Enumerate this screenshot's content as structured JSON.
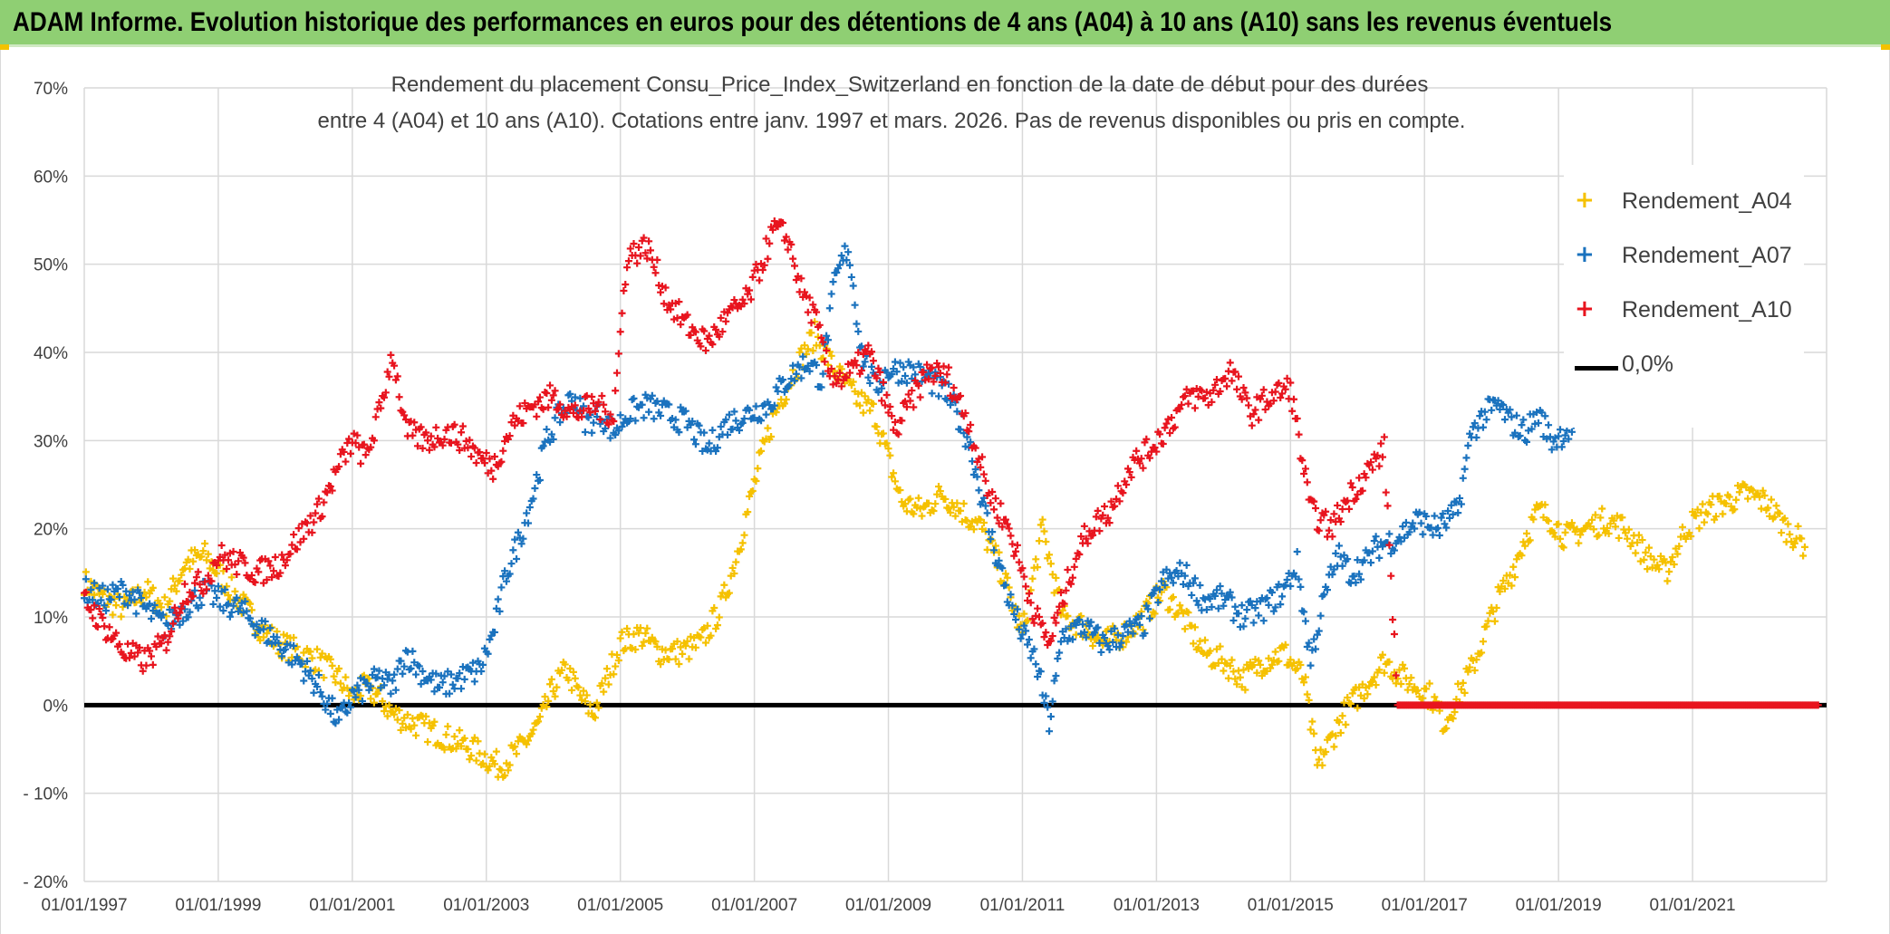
{
  "banner": {
    "title": "ADAM Informe. Evolution historique des performances en euros pour des détentions de 4 ans (A04) à 10 ans (A10) sans les revenus éventuels"
  },
  "colors": {
    "banner_bg": "#8fcf73",
    "a04": "#f5c100",
    "a07": "#1a72be",
    "a10": "#e8141e",
    "zero_line": "#000000",
    "grid": "#d9d9d9",
    "axis_text": "#404040"
  },
  "chart_data": {
    "type": "scatter",
    "title_line1": "Rendement du placement Consu_Price_Index_Switzerland en fonction de la date de début pour des durées",
    "title_line2": "entre 4 (A04) et 10 ans (A10). Cotations entre janv. 1997 et mars. 2026. Pas de revenus disponibles ou pris en compte.",
    "x_unit": "year",
    "xlim": [
      1997.0,
      2023.0
    ],
    "ylim": [
      -20,
      70
    ],
    "y_ticks": [
      70,
      60,
      50,
      40,
      30,
      20,
      10,
      0,
      -10,
      -20
    ],
    "y_tick_labels": [
      "70%",
      "60%",
      "50%",
      "40%",
      "30%",
      "20%",
      "10%",
      "0%",
      "- 10%",
      "- 20%"
    ],
    "x_tick_values": [
      1997,
      1999,
      2001,
      2003,
      2005,
      2007,
      2009,
      2011,
      2013,
      2015,
      2017,
      2019,
      2021
    ],
    "x_tick_labels": [
      "01/01/1997",
      "01/01/1999",
      "01/01/2001",
      "01/01/2003",
      "01/01/2005",
      "01/01/2007",
      "01/01/2009",
      "01/01/2011",
      "01/01/2013",
      "01/01/2015",
      "01/01/2017",
      "01/01/2019",
      "01/01/2021"
    ],
    "legend": [
      {
        "key": "a04",
        "label": "Rendement_A04"
      },
      {
        "key": "a07",
        "label": "Rendement_A07"
      },
      {
        "key": "a10",
        "label": "Rendement_A10"
      },
      {
        "key": "zero",
        "label": "0,0%"
      }
    ],
    "series": [
      {
        "name": "Rendement_A04",
        "key": "a04",
        "points": [
          [
            1997.0,
            14
          ],
          [
            1997.3,
            12
          ],
          [
            1997.6,
            11
          ],
          [
            1997.9,
            13
          ],
          [
            1998.2,
            11
          ],
          [
            1998.5,
            16
          ],
          [
            1998.8,
            17
          ],
          [
            1999.0,
            15
          ],
          [
            1999.3,
            12
          ],
          [
            1999.6,
            9
          ],
          [
            1999.9,
            7
          ],
          [
            2000.2,
            6
          ],
          [
            2000.5,
            5
          ],
          [
            2000.8,
            3
          ],
          [
            2001.0,
            1
          ],
          [
            2001.2,
            2
          ],
          [
            2001.4,
            1
          ],
          [
            2001.6,
            -1
          ],
          [
            2001.9,
            -2
          ],
          [
            2002.2,
            -3
          ],
          [
            2002.5,
            -4
          ],
          [
            2002.8,
            -5
          ],
          [
            2003.0,
            -6
          ],
          [
            2003.2,
            -7
          ],
          [
            2003.5,
            -5
          ],
          [
            2003.8,
            -2
          ],
          [
            2004.0,
            2
          ],
          [
            2004.2,
            4
          ],
          [
            2004.4,
            1
          ],
          [
            2004.6,
            -1
          ],
          [
            2004.8,
            3
          ],
          [
            2005.0,
            7
          ],
          [
            2005.3,
            8
          ],
          [
            2005.6,
            6
          ],
          [
            2005.9,
            6
          ],
          [
            2006.2,
            7
          ],
          [
            2006.5,
            11
          ],
          [
            2006.7,
            16
          ],
          [
            2006.9,
            22
          ],
          [
            2007.1,
            28
          ],
          [
            2007.3,
            33
          ],
          [
            2007.6,
            38
          ],
          [
            2007.9,
            42
          ],
          [
            2008.2,
            38
          ],
          [
            2008.5,
            35
          ],
          [
            2008.8,
            33
          ],
          [
            2009.0,
            28
          ],
          [
            2009.2,
            23
          ],
          [
            2009.5,
            22
          ],
          [
            2009.8,
            24
          ],
          [
            2010.1,
            22
          ],
          [
            2010.4,
            20
          ],
          [
            2010.7,
            15
          ],
          [
            2011.0,
            8
          ],
          [
            2011.3,
            20
          ],
          [
            2011.6,
            10
          ],
          [
            2011.9,
            9
          ],
          [
            2012.2,
            7
          ],
          [
            2012.5,
            8
          ],
          [
            2012.8,
            10
          ],
          [
            2013.1,
            13
          ],
          [
            2013.4,
            10
          ],
          [
            2013.7,
            6
          ],
          [
            2014.0,
            5
          ],
          [
            2014.3,
            3
          ],
          [
            2014.6,
            5
          ],
          [
            2014.9,
            6
          ],
          [
            2015.2,
            3
          ],
          [
            2015.4,
            -7
          ],
          [
            2015.6,
            -4
          ],
          [
            2015.8,
            -1
          ],
          [
            2016.0,
            1
          ],
          [
            2016.2,
            3
          ],
          [
            2016.4,
            5
          ],
          [
            2016.7,
            3
          ],
          [
            2016.9,
            2
          ],
          [
            2017.1,
            1
          ],
          [
            2017.3,
            -2
          ],
          [
            2017.5,
            1
          ],
          [
            2017.7,
            4
          ],
          [
            2017.9,
            8
          ],
          [
            2018.1,
            12
          ],
          [
            2018.3,
            15
          ],
          [
            2018.5,
            19
          ],
          [
            2018.7,
            22
          ],
          [
            2018.9,
            21
          ],
          [
            2019.1,
            19
          ],
          [
            2019.4,
            20
          ],
          [
            2019.7,
            21
          ],
          [
            2020.0,
            20
          ],
          [
            2020.3,
            17
          ],
          [
            2020.6,
            15
          ],
          [
            2020.9,
            20
          ],
          [
            2021.2,
            22
          ],
          [
            2021.5,
            23
          ],
          [
            2021.8,
            24
          ],
          [
            2022.1,
            23
          ],
          [
            2022.4,
            20
          ],
          [
            2022.7,
            18
          ]
        ]
      },
      {
        "name": "Rendement_A07",
        "key": "a07",
        "points": [
          [
            1997.0,
            13
          ],
          [
            1997.3,
            12
          ],
          [
            1997.6,
            13
          ],
          [
            1997.9,
            11
          ],
          [
            1998.2,
            9
          ],
          [
            1998.5,
            11
          ],
          [
            1998.8,
            13
          ],
          [
            1999.0,
            12
          ],
          [
            1999.3,
            11
          ],
          [
            1999.6,
            9
          ],
          [
            1999.9,
            7
          ],
          [
            2000.2,
            5
          ],
          [
            2000.5,
            2
          ],
          [
            2000.8,
            -2
          ],
          [
            2001.0,
            1
          ],
          [
            2001.2,
            2
          ],
          [
            2001.4,
            3
          ],
          [
            2001.6,
            2
          ],
          [
            2001.8,
            6
          ],
          [
            2002.0,
            4
          ],
          [
            2002.3,
            2
          ],
          [
            2002.6,
            3
          ],
          [
            2002.9,
            4
          ],
          [
            2003.1,
            8
          ],
          [
            2003.3,
            15
          ],
          [
            2003.5,
            19
          ],
          [
            2003.7,
            24
          ],
          [
            2003.9,
            30
          ],
          [
            2004.1,
            33
          ],
          [
            2004.3,
            35
          ],
          [
            2004.5,
            32
          ],
          [
            2004.7,
            33
          ],
          [
            2004.9,
            31
          ],
          [
            2005.1,
            33
          ],
          [
            2005.4,
            34
          ],
          [
            2005.7,
            33
          ],
          [
            2006.0,
            32
          ],
          [
            2006.3,
            29
          ],
          [
            2006.6,
            32
          ],
          [
            2006.9,
            33
          ],
          [
            2007.2,
            34
          ],
          [
            2007.5,
            37
          ],
          [
            2007.8,
            39
          ],
          [
            2008.0,
            37
          ],
          [
            2008.2,
            48
          ],
          [
            2008.4,
            52
          ],
          [
            2008.6,
            40
          ],
          [
            2008.8,
            36
          ],
          [
            2009.0,
            38
          ],
          [
            2009.3,
            38
          ],
          [
            2009.6,
            37
          ],
          [
            2009.9,
            35
          ],
          [
            2010.2,
            30
          ],
          [
            2010.5,
            20
          ],
          [
            2010.8,
            12
          ],
          [
            2011.0,
            8
          ],
          [
            2011.2,
            5
          ],
          [
            2011.4,
            -2
          ],
          [
            2011.6,
            8
          ],
          [
            2011.9,
            9
          ],
          [
            2012.2,
            7
          ],
          [
            2012.5,
            8
          ],
          [
            2012.8,
            9
          ],
          [
            2013.1,
            14
          ],
          [
            2013.4,
            15
          ],
          [
            2013.7,
            12
          ],
          [
            2014.0,
            12
          ],
          [
            2014.3,
            10
          ],
          [
            2014.6,
            11
          ],
          [
            2014.9,
            13
          ],
          [
            2015.1,
            16
          ],
          [
            2015.3,
            5
          ],
          [
            2015.5,
            12
          ],
          [
            2015.7,
            17
          ],
          [
            2015.9,
            15
          ],
          [
            2016.1,
            16
          ],
          [
            2016.3,
            18
          ],
          [
            2016.6,
            19
          ],
          [
            2016.9,
            21
          ],
          [
            2017.2,
            20
          ],
          [
            2017.5,
            22
          ],
          [
            2017.7,
            31
          ],
          [
            2017.9,
            33
          ],
          [
            2018.1,
            34
          ],
          [
            2018.3,
            32
          ],
          [
            2018.5,
            31
          ],
          [
            2018.7,
            33
          ],
          [
            2018.9,
            30
          ],
          [
            2019.1,
            31
          ],
          [
            2019.3,
            32
          ]
        ]
      },
      {
        "name": "Rendement_A10",
        "key": "a10",
        "points": [
          [
            1997.0,
            12
          ],
          [
            1997.3,
            9
          ],
          [
            1997.6,
            6
          ],
          [
            1997.9,
            5
          ],
          [
            1998.2,
            7
          ],
          [
            1998.5,
            13
          ],
          [
            1998.8,
            14
          ],
          [
            1999.0,
            17
          ],
          [
            1999.3,
            16
          ],
          [
            1999.6,
            15
          ],
          [
            1999.9,
            16
          ],
          [
            2000.2,
            19
          ],
          [
            2000.5,
            22
          ],
          [
            2000.8,
            27
          ],
          [
            2001.0,
            30
          ],
          [
            2001.2,
            28
          ],
          [
            2001.4,
            33
          ],
          [
            2001.6,
            40
          ],
          [
            2001.8,
            31
          ],
          [
            2002.1,
            30
          ],
          [
            2002.4,
            31
          ],
          [
            2002.7,
            30
          ],
          [
            2002.9,
            28
          ],
          [
            2003.1,
            27
          ],
          [
            2003.4,
            32
          ],
          [
            2003.7,
            34
          ],
          [
            2004.0,
            35
          ],
          [
            2004.3,
            33
          ],
          [
            2004.6,
            34
          ],
          [
            2004.9,
            33
          ],
          [
            2005.1,
            51
          ],
          [
            2005.4,
            52
          ],
          [
            2005.7,
            46
          ],
          [
            2006.0,
            43
          ],
          [
            2006.3,
            41
          ],
          [
            2006.6,
            44
          ],
          [
            2006.9,
            46
          ],
          [
            2007.1,
            50
          ],
          [
            2007.3,
            54
          ],
          [
            2007.5,
            53
          ],
          [
            2007.7,
            47
          ],
          [
            2007.9,
            44
          ],
          [
            2008.1,
            38
          ],
          [
            2008.3,
            37
          ],
          [
            2008.5,
            38
          ],
          [
            2008.7,
            40
          ],
          [
            2008.9,
            36
          ],
          [
            2009.1,
            31
          ],
          [
            2009.3,
            34
          ],
          [
            2009.6,
            38
          ],
          [
            2009.9,
            37
          ],
          [
            2010.2,
            32
          ],
          [
            2010.5,
            24
          ],
          [
            2010.8,
            20
          ],
          [
            2011.0,
            15
          ],
          [
            2011.2,
            10
          ],
          [
            2011.4,
            7
          ],
          [
            2011.6,
            12
          ],
          [
            2011.8,
            17
          ],
          [
            2012.0,
            20
          ],
          [
            2012.3,
            22
          ],
          [
            2012.6,
            27
          ],
          [
            2012.9,
            29
          ],
          [
            2013.2,
            32
          ],
          [
            2013.5,
            35
          ],
          [
            2013.8,
            35
          ],
          [
            2014.1,
            38
          ],
          [
            2014.4,
            33
          ],
          [
            2014.7,
            35
          ],
          [
            2015.0,
            36
          ],
          [
            2015.3,
            22
          ],
          [
            2015.6,
            20
          ],
          [
            2015.9,
            24
          ],
          [
            2016.2,
            27
          ],
          [
            2016.4,
            29
          ],
          [
            2016.6,
            0
          ],
          [
            2017.0,
            0
          ],
          [
            2018.0,
            0
          ],
          [
            2019.0,
            0
          ],
          [
            2020.0,
            0
          ],
          [
            2021.0,
            0
          ],
          [
            2022.0,
            0
          ],
          [
            2022.9,
            0
          ]
        ]
      }
    ]
  }
}
